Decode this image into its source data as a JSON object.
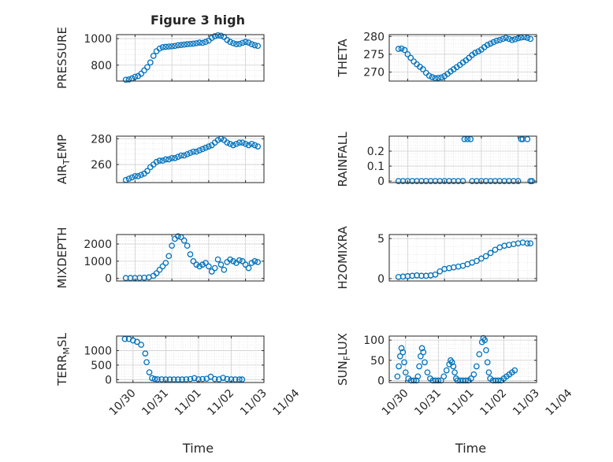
{
  "figure": {
    "title": "Figure 3 high",
    "series_color": "#0072BD"
  },
  "chart_data": [
    {
      "id": "pressure",
      "type": "scatter",
      "title": "Figure 3 high",
      "ylabel": "PRESSURE",
      "xlabel": "",
      "x_range": [
        "10/30 12:00",
        "11/03 12:00"
      ],
      "ylim": [
        680,
        1030
      ],
      "yticks": [
        800,
        1000
      ],
      "ytick_labels": [
        "800",
        "1000"
      ],
      "show_xticks": false,
      "grid": true,
      "minor_grid": true,
      "series": [
        {
          "x": [
            "10/30 18:00",
            "10/30 20:00",
            "10/30 22:00",
            "10/31 00:00",
            "10/31 02:00",
            "10/31 04:00",
            "10/31 06:00",
            "10/31 08:00",
            "10/31 10:00",
            "10/31 12:00",
            "10/31 14:00",
            "10/31 16:00",
            "10/31 18:00",
            "10/31 20:00",
            "10/31 22:00",
            "11/01 00:00",
            "11/01 02:00",
            "11/01 04:00",
            "11/01 06:00",
            "11/01 08:00",
            "11/01 10:00",
            "11/01 12:00",
            "11/01 14:00",
            "11/01 16:00",
            "11/01 18:00",
            "11/01 20:00",
            "11/01 22:00",
            "11/02 00:00",
            "11/02 02:00",
            "11/02 04:00",
            "11/02 06:00",
            "11/02 08:00",
            "11/02 10:00",
            "11/02 12:00",
            "11/02 14:00",
            "11/02 16:00",
            "11/02 18:00",
            "11/02 20:00",
            "11/02 22:00",
            "11/03 00:00",
            "11/03 02:00",
            "11/03 04:00",
            "11/03 06:00",
            "11/03 08:00"
          ],
          "y": [
            690,
            692,
            700,
            712,
            718,
            735,
            760,
            785,
            820,
            870,
            905,
            925,
            935,
            938,
            940,
            942,
            945,
            950,
            952,
            955,
            958,
            960,
            962,
            965,
            970,
            968,
            975,
            985,
            1005,
            1018,
            1025,
            1022,
            1012,
            990,
            975,
            965,
            958,
            960,
            968,
            975,
            970,
            958,
            950,
            945
          ]
        }
      ]
    },
    {
      "id": "theta",
      "type": "scatter",
      "ylabel": "THETA",
      "xlabel": "",
      "x_range": [
        "10/30 12:00",
        "11/03 12:00"
      ],
      "ylim": [
        267.5,
        280.5
      ],
      "yticks": [
        270,
        275,
        280
      ],
      "ytick_labels": [
        "270",
        "275",
        "280"
      ],
      "show_xticks": false,
      "grid": true,
      "minor_grid": true,
      "series": [
        {
          "x": [
            "10/30 18:00",
            "10/30 20:00",
            "10/30 22:00",
            "10/31 00:00",
            "10/31 02:00",
            "10/31 04:00",
            "10/31 06:00",
            "10/31 08:00",
            "10/31 10:00",
            "10/31 12:00",
            "10/31 14:00",
            "10/31 16:00",
            "10/31 18:00",
            "10/31 20:00",
            "10/31 22:00",
            "11/01 00:00",
            "11/01 02:00",
            "11/01 04:00",
            "11/01 06:00",
            "11/01 08:00",
            "11/01 10:00",
            "11/01 12:00",
            "11/01 14:00",
            "11/01 16:00",
            "11/01 18:00",
            "11/01 20:00",
            "11/01 22:00",
            "11/02 00:00",
            "11/02 02:00",
            "11/02 04:00",
            "11/02 06:00",
            "11/02 08:00",
            "11/02 10:00",
            "11/02 12:00",
            "11/02 14:00",
            "11/02 16:00",
            "11/02 18:00",
            "11/02 20:00",
            "11/02 22:00",
            "11/03 00:00",
            "11/03 02:00",
            "11/03 04:00",
            "11/03 06:00",
            "11/03 08:00"
          ],
          "y": [
            276.5,
            276.6,
            276.2,
            275.0,
            274.0,
            273.0,
            272.2,
            271.5,
            270.8,
            269.8,
            269.0,
            268.6,
            268.3,
            268.4,
            268.5,
            268.9,
            269.5,
            270.2,
            270.8,
            271.4,
            272.0,
            272.7,
            273.3,
            274.0,
            274.8,
            275.4,
            275.8,
            276.3,
            277.0,
            277.6,
            278.0,
            278.4,
            278.8,
            279.0,
            279.3,
            279.6,
            279.3,
            279.0,
            279.2,
            279.5,
            279.7,
            279.8,
            279.6,
            279.3
          ]
        }
      ]
    },
    {
      "id": "air-temp",
      "type": "scatter",
      "ylabel": "AIR_TEMP",
      "xlabel": "",
      "x_range": [
        "10/30 12:00",
        "11/03 12:00"
      ],
      "ylim": [
        246,
        282
      ],
      "yticks": [
        260,
        280
      ],
      "ytick_labels": [
        "260",
        "280"
      ],
      "show_xticks": false,
      "grid": true,
      "minor_grid": true,
      "series": [
        {
          "x": [
            "10/30 18:00",
            "10/30 20:00",
            "10/30 22:00",
            "10/31 00:00",
            "10/31 02:00",
            "10/31 04:00",
            "10/31 06:00",
            "10/31 08:00",
            "10/31 10:00",
            "10/31 12:00",
            "10/31 14:00",
            "10/31 16:00",
            "10/31 18:00",
            "10/31 20:00",
            "10/31 22:00",
            "11/01 00:00",
            "11/01 02:00",
            "11/01 04:00",
            "11/01 06:00",
            "11/01 08:00",
            "11/01 10:00",
            "11/01 12:00",
            "11/01 14:00",
            "11/01 16:00",
            "11/01 18:00",
            "11/01 20:00",
            "11/01 22:00",
            "11/02 00:00",
            "11/02 02:00",
            "11/02 04:00",
            "11/02 06:00",
            "11/02 08:00",
            "11/02 10:00",
            "11/02 12:00",
            "11/02 14:00",
            "11/02 16:00",
            "11/02 18:00",
            "11/02 20:00",
            "11/02 22:00",
            "11/03 00:00",
            "11/03 02:00",
            "11/03 04:00",
            "11/03 06:00",
            "11/03 08:00"
          ],
          "y": [
            248,
            249,
            250,
            251,
            251,
            252,
            253,
            255,
            258,
            260,
            262,
            263,
            263,
            264,
            264,
            265,
            265,
            266,
            267,
            267,
            268,
            269,
            270,
            270,
            271,
            272,
            273,
            274,
            275,
            277,
            279,
            280,
            279,
            277,
            276,
            275,
            276,
            277,
            277,
            276,
            275,
            276,
            275,
            274
          ]
        }
      ]
    },
    {
      "id": "rainfall",
      "type": "scatter",
      "ylabel": "RAINFALL",
      "xlabel": "",
      "x_range": [
        "10/30 12:00",
        "11/03 12:00"
      ],
      "ylim": [
        -0.01,
        0.3
      ],
      "yticks": [
        0,
        0.1,
        0.2
      ],
      "ytick_labels": [
        "0",
        "0.1",
        "0.2"
      ],
      "show_xticks": false,
      "grid": true,
      "minor_grid": true,
      "series": [
        {
          "x": [
            "10/30 18:00",
            "10/30 21:00",
            "10/31 00:00",
            "10/31 03:00",
            "10/31 06:00",
            "10/31 09:00",
            "10/31 12:00",
            "10/31 15:00",
            "10/31 18:00",
            "10/31 21:00",
            "11/01 00:00",
            "11/01 03:00",
            "11/01 06:00",
            "11/01 09:00",
            "11/01 12:00",
            "11/01 13:00",
            "11/01 15:00",
            "11/01 17:00",
            "11/01 18:00",
            "11/01 21:00",
            "11/02 00:00",
            "11/02 03:00",
            "11/02 06:00",
            "11/02 09:00",
            "11/02 12:00",
            "11/02 15:00",
            "11/02 18:00",
            "11/02 21:00",
            "11/03 00:00",
            "11/03 02:00",
            "11/03 03:00",
            "11/03 06:00",
            "11/03 08:00",
            "11/03 09:00"
          ],
          "y": [
            0,
            0,
            0,
            0,
            0,
            0,
            0,
            0,
            0,
            0,
            0,
            0,
            0,
            0,
            0,
            0.28,
            0.28,
            0.28,
            0,
            0,
            0,
            0,
            0,
            0,
            0,
            0,
            0,
            0,
            0,
            0.28,
            0.28,
            0.28,
            0,
            0
          ]
        }
      ]
    },
    {
      "id": "mixdepth",
      "type": "scatter",
      "ylabel": "MIXDEPTH",
      "xlabel": "",
      "x_range": [
        "10/30 12:00",
        "11/03 12:00"
      ],
      "ylim": [
        -150,
        2550
      ],
      "yticks": [
        0,
        1000,
        2000
      ],
      "ytick_labels": [
        "0",
        "1000",
        "2000"
      ],
      "show_xticks": false,
      "grid": true,
      "minor_grid": true,
      "series": [
        {
          "x": [
            "10/30 18:00",
            "10/30 21:00",
            "10/31 00:00",
            "10/31 03:00",
            "10/31 06:00",
            "10/31 09:00",
            "10/31 12:00",
            "10/31 14:00",
            "10/31 16:00",
            "10/31 18:00",
            "10/31 20:00",
            "10/31 22:00",
            "11/01 00:00",
            "11/01 02:00",
            "11/01 04:00",
            "11/01 06:00",
            "11/01 08:00",
            "11/01 10:00",
            "11/01 12:00",
            "11/01 14:00",
            "11/01 16:00",
            "11/01 18:00",
            "11/01 20:00",
            "11/01 22:00",
            "11/02 00:00",
            "11/02 02:00",
            "11/02 04:00",
            "11/02 06:00",
            "11/02 08:00",
            "11/02 10:00",
            "11/02 12:00",
            "11/02 14:00",
            "11/02 16:00",
            "11/02 18:00",
            "11/02 20:00",
            "11/02 22:00",
            "11/03 00:00",
            "11/03 02:00",
            "11/03 04:00",
            "11/03 06:00",
            "11/03 08:00"
          ],
          "y": [
            20,
            20,
            25,
            30,
            40,
            60,
            150,
            300,
            500,
            700,
            900,
            1300,
            1900,
            2300,
            2450,
            2400,
            2200,
            1900,
            1400,
            1000,
            800,
            700,
            800,
            900,
            700,
            400,
            600,
            1100,
            800,
            500,
            950,
            1100,
            1000,
            900,
            1050,
            1000,
            800,
            600,
            900,
            1000,
            950
          ]
        }
      ]
    },
    {
      "id": "h2omixra",
      "type": "scatter",
      "ylabel": "H2OMIXRA",
      "xlabel": "",
      "x_range": [
        "10/30 12:00",
        "11/03 12:00"
      ],
      "ylim": [
        -0.3,
        5.5
      ],
      "yticks": [
        0,
        5
      ],
      "ytick_labels": [
        "0",
        "5"
      ],
      "show_xticks": false,
      "grid": true,
      "minor_grid": true,
      "series": [
        {
          "x": [
            "10/30 18:00",
            "10/30 21:00",
            "10/31 00:00",
            "10/31 03:00",
            "10/31 06:00",
            "10/31 09:00",
            "10/31 12:00",
            "10/31 15:00",
            "10/31 18:00",
            "10/31 21:00",
            "11/01 00:00",
            "11/01 03:00",
            "11/01 06:00",
            "11/01 09:00",
            "11/01 12:00",
            "11/01 15:00",
            "11/01 18:00",
            "11/01 21:00",
            "11/02 00:00",
            "11/02 03:00",
            "11/02 06:00",
            "11/02 09:00",
            "11/02 12:00",
            "11/02 15:00",
            "11/02 18:00",
            "11/02 21:00",
            "11/03 00:00",
            "11/03 03:00",
            "11/03 06:00",
            "11/03 08:00"
          ],
          "y": [
            0.2,
            0.25,
            0.3,
            0.35,
            0.4,
            0.35,
            0.35,
            0.4,
            0.5,
            0.9,
            1.2,
            1.3,
            1.4,
            1.5,
            1.6,
            1.8,
            2.0,
            2.2,
            2.5,
            2.8,
            3.2,
            3.6,
            3.9,
            4.1,
            4.2,
            4.3,
            4.4,
            4.5,
            4.4,
            4.4
          ]
        }
      ]
    },
    {
      "id": "terr-msl",
      "type": "scatter",
      "ylabel": "TERR_MSL",
      "xlabel": "Time",
      "x_range": [
        "10/30 12:00",
        "11/04 00:00"
      ],
      "ylim": [
        -100,
        1500
      ],
      "yticks": [
        0,
        500,
        1000
      ],
      "ytick_labels": [
        "0",
        "500",
        "1000"
      ],
      "xticks": [
        "10/30",
        "10/31",
        "11/01",
        "11/02",
        "11/03",
        "11/04"
      ],
      "show_xticks": true,
      "grid": true,
      "minor_grid": true,
      "series": [
        {
          "x": [
            "10/30 18:00",
            "10/30 21:00",
            "10/31 00:00",
            "10/31 03:00",
            "10/31 06:00",
            "10/31 09:00",
            "10/31 10:00",
            "10/31 12:00",
            "10/31 14:00",
            "10/31 16:00",
            "10/31 18:00",
            "10/31 21:00",
            "11/01 00:00",
            "11/01 03:00",
            "11/01 06:00",
            "11/01 09:00",
            "11/01 12:00",
            "11/01 15:00",
            "11/01 18:00",
            "11/01 21:00",
            "11/02 00:00",
            "11/02 03:00",
            "11/02 06:00",
            "11/02 09:00",
            "11/02 12:00",
            "11/02 15:00",
            "11/02 18:00",
            "11/02 21:00",
            "11/03 00:00",
            "11/03 03:00",
            "11/03 06:00",
            "11/03 08:00"
          ],
          "y": [
            1400,
            1400,
            1350,
            1300,
            1200,
            900,
            600,
            250,
            50,
            20,
            10,
            10,
            5,
            5,
            5,
            5,
            5,
            10,
            20,
            50,
            10,
            20,
            30,
            100,
            20,
            10,
            60,
            20,
            10,
            5,
            5,
            5
          ]
        }
      ]
    },
    {
      "id": "sun-flux",
      "type": "scatter",
      "ylabel": "SUN_FLUX",
      "xlabel": "Time",
      "x_range": [
        "10/30 12:00",
        "11/04 00:00"
      ],
      "ylim": [
        -5,
        110
      ],
      "yticks": [
        0,
        50,
        100
      ],
      "ytick_labels": [
        "0",
        "50",
        "100"
      ],
      "xticks": [
        "10/30",
        "10/31",
        "11/01",
        "11/02",
        "11/03",
        "11/04"
      ],
      "show_xticks": true,
      "grid": true,
      "minor_grid": true,
      "series": [
        {
          "x": [
            "10/30 18:00",
            "10/30 19:00",
            "10/30 20:00",
            "10/30 21:00",
            "10/30 22:00",
            "10/30 23:00",
            "10/31 00:00",
            "10/31 02:00",
            "10/31 04:00",
            "10/31 06:00",
            "10/31 08:00",
            "10/31 09:00",
            "10/31 10:00",
            "10/31 11:00",
            "10/31 12:00",
            "10/31 13:00",
            "10/31 14:00",
            "10/31 16:00",
            "10/31 18:00",
            "10/31 20:00",
            "10/31 22:00",
            "11/01 00:00",
            "11/01 02:00",
            "11/01 04:00",
            "11/01 06:00",
            "11/01 08:00",
            "11/01 09:00",
            "11/01 10:00",
            "11/01 11:00",
            "11/01 12:00",
            "11/01 13:00",
            "11/01 14:00",
            "11/01 16:00",
            "11/01 18:00",
            "11/01 20:00",
            "11/01 22:00",
            "11/02 00:00",
            "11/02 02:00",
            "11/02 04:00",
            "11/02 06:00",
            "11/02 08:00",
            "11/02 09:00",
            "11/02 10:00",
            "11/02 11:00",
            "11/02 12:00",
            "11/02 13:00",
            "11/02 14:00",
            "11/02 16:00",
            "11/02 18:00",
            "11/02 20:00",
            "11/02 22:00",
            "11/03 00:00",
            "11/03 02:00",
            "11/03 04:00",
            "11/03 06:00",
            "11/03 08:00"
          ],
          "y": [
            10,
            35,
            60,
            80,
            70,
            45,
            20,
            5,
            0,
            0,
            0,
            10,
            35,
            60,
            80,
            70,
            45,
            20,
            5,
            0,
            0,
            0,
            0,
            10,
            25,
            40,
            50,
            45,
            35,
            20,
            5,
            0,
            0,
            0,
            0,
            0,
            5,
            15,
            35,
            65,
            95,
            105,
            100,
            75,
            45,
            20,
            5,
            0,
            0,
            0,
            0,
            5,
            10,
            15,
            20,
            25
          ]
        }
      ]
    }
  ]
}
